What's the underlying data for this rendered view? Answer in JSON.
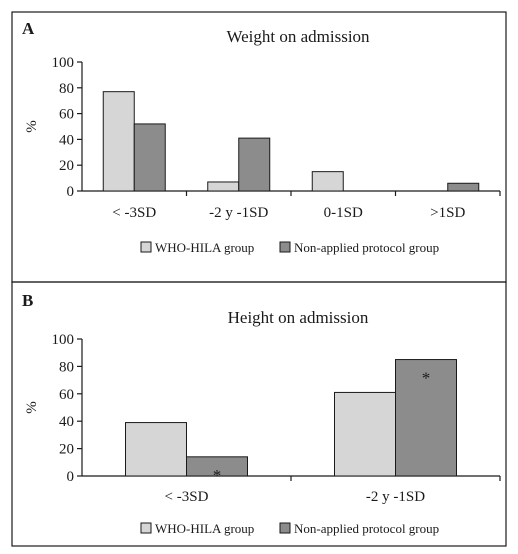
{
  "colors": {
    "series_1": "#d6d6d6",
    "series_2": "#8c8c8c",
    "outline": "#1a1a1a"
  },
  "panels": [
    {
      "letter": "A",
      "title": "Weight on admission"
    },
    {
      "letter": "B",
      "title": "Height on admission"
    }
  ],
  "chart_data": [
    {
      "type": "bar",
      "title": "Weight on admission",
      "panel_label": "A",
      "ylabel": "%",
      "xlabel": "",
      "ylim": [
        0,
        100
      ],
      "yticks": [
        0,
        20,
        40,
        60,
        80,
        100
      ],
      "categories": [
        "< -3SD",
        "-2 y -1SD",
        "0-1SD",
        ">1SD"
      ],
      "series": [
        {
          "name": "WHO-HILA group",
          "values": [
            77,
            7,
            15,
            0
          ]
        },
        {
          "name": "Non-applied protocol group",
          "values": [
            52,
            41,
            0,
            6
          ]
        }
      ],
      "annotations": [],
      "legend": "bottom",
      "grid": false
    },
    {
      "type": "bar",
      "title": "Height on admission",
      "panel_label": "B",
      "ylabel": "%",
      "xlabel": "",
      "ylim": [
        0,
        100
      ],
      "yticks": [
        0,
        20,
        40,
        60,
        80,
        100
      ],
      "categories": [
        "< -3SD",
        "-2 y -1SD"
      ],
      "series": [
        {
          "name": "WHO-HILA group",
          "values": [
            39,
            61
          ]
        },
        {
          "name": "Non-applied protocol group",
          "values": [
            14,
            85
          ]
        }
      ],
      "annotations": [
        {
          "text": "*",
          "category": 0,
          "series": 1
        },
        {
          "text": "*",
          "category": 1,
          "series": 1
        }
      ],
      "legend": "bottom",
      "grid": false
    }
  ]
}
